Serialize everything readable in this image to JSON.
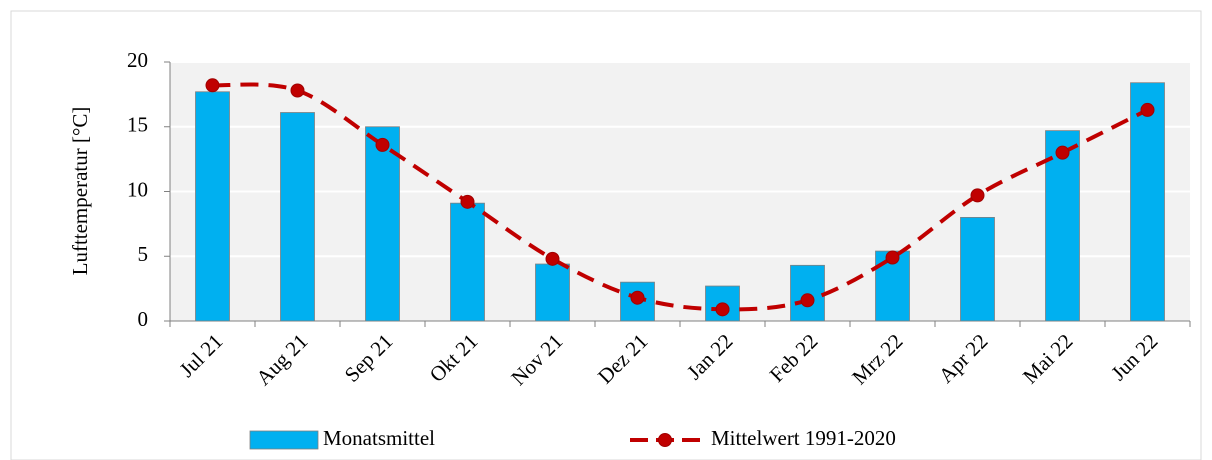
{
  "chart_data": {
    "type": "bar",
    "ylabel": "Lufttemperatur [°C]",
    "categories": [
      "Jul 21",
      "Aug 21",
      "Sep 21",
      "Okt 21",
      "Nov 21",
      "Dez 21",
      "Jan 22",
      "Feb 22",
      "Mrz 22",
      "Apr 22",
      "Mai 22",
      "Jun 22"
    ],
    "series": [
      {
        "name": "Monatsmittel",
        "type": "bar",
        "color": "#00b0f0",
        "values": [
          17.7,
          16.1,
          15.0,
          9.1,
          4.4,
          3.0,
          2.7,
          4.3,
          5.4,
          8.0,
          14.7,
          18.4
        ]
      },
      {
        "name": "Mittelwert 1991-2020",
        "type": "line",
        "color": "#c00000",
        "values": [
          18.2,
          17.8,
          13.6,
          9.2,
          4.8,
          1.8,
          0.9,
          1.6,
          4.9,
          9.7,
          13.0,
          16.3
        ]
      }
    ],
    "ylim": [
      0,
      20
    ],
    "yticks": [
      0,
      5,
      10,
      15,
      20
    ],
    "grid": true
  }
}
